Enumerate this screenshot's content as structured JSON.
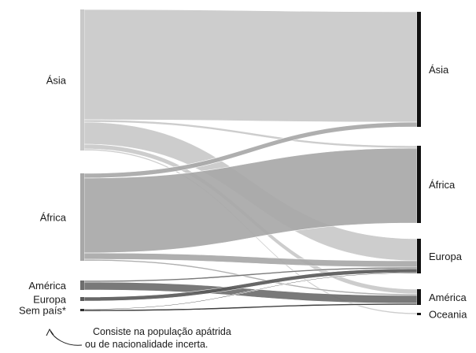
{
  "diagram": {
    "type": "sankey",
    "left_nodes": [
      {
        "id": "asia_o",
        "label": "Ásia"
      },
      {
        "id": "africa_o",
        "label": "África"
      },
      {
        "id": "america_o",
        "label": "América"
      },
      {
        "id": "europa_o",
        "label": "Europa"
      },
      {
        "id": "sempais_o",
        "label": "Sem país*"
      }
    ],
    "right_nodes": [
      {
        "id": "asia_d",
        "label": "Ásia"
      },
      {
        "id": "africa_d",
        "label": "África"
      },
      {
        "id": "europa_d",
        "label": "Europa"
      },
      {
        "id": "america_d",
        "label": "América"
      },
      {
        "id": "oceania_d",
        "label": "Oceania"
      }
    ],
    "flows": [
      {
        "from": "asia_o",
        "to": "asia_d",
        "value": 140
      },
      {
        "from": "asia_o",
        "to": "africa_d",
        "value": 3
      },
      {
        "from": "asia_o",
        "to": "europa_d",
        "value": 28
      },
      {
        "from": "asia_o",
        "to": "america_d",
        "value": 6
      },
      {
        "from": "asia_o",
        "to": "oceania_d",
        "value": 2
      },
      {
        "from": "africa_o",
        "to": "asia_d",
        "value": 6
      },
      {
        "from": "africa_o",
        "to": "africa_d",
        "value": 95
      },
      {
        "from": "africa_o",
        "to": "europa_d",
        "value": 8
      },
      {
        "from": "africa_o",
        "to": "america_d",
        "value": 2
      },
      {
        "from": "america_o",
        "to": "europa_d",
        "value": 2
      },
      {
        "from": "america_o",
        "to": "america_d",
        "value": 10
      },
      {
        "from": "europa_o",
        "to": "europa_d",
        "value": 5
      },
      {
        "from": "sempais_o",
        "to": "europa_d",
        "value": 1
      },
      {
        "from": "sempais_o",
        "to": "america_d",
        "value": 2
      }
    ],
    "note": {
      "line1": "Consiste na população apátrida",
      "line2": "ou de nacionalidade incerta."
    }
  }
}
